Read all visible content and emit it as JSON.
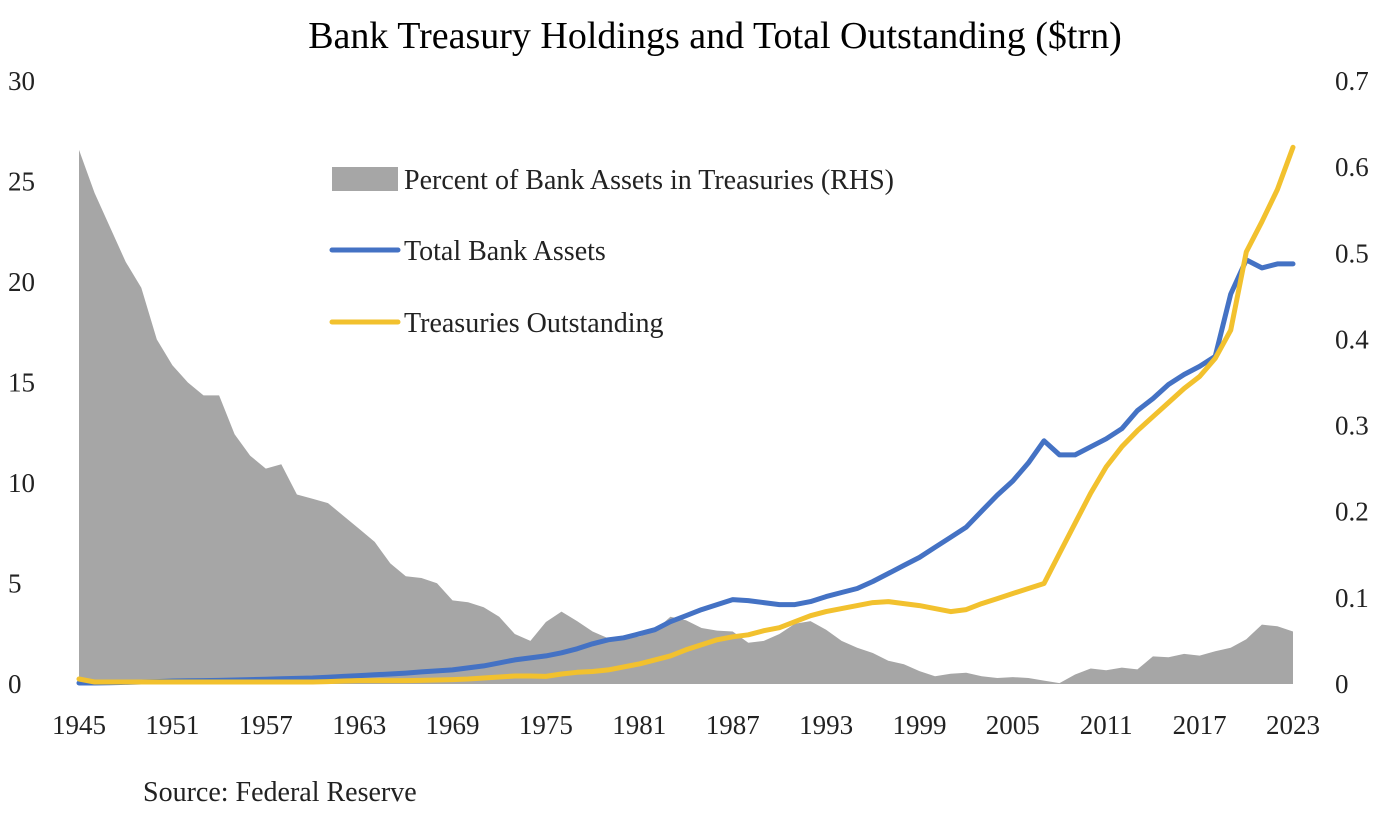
{
  "chart_data": {
    "type": "line",
    "title": "Bank Treasury Holdings and Total Outstanding ($trn)",
    "source": "Source: Federal Reserve",
    "x_tick_labels": [
      "1945",
      "1951",
      "1957",
      "1963",
      "1969",
      "1975",
      "1981",
      "1987",
      "1993",
      "1999",
      "2005",
      "2011",
      "2017",
      "2023"
    ],
    "y_left": {
      "ylim": [
        0,
        30
      ],
      "ticks": [
        "0",
        "5",
        "10",
        "15",
        "20",
        "25",
        "30"
      ]
    },
    "y_right": {
      "ylim": [
        0,
        0.7
      ],
      "ticks": [
        "0",
        "0.1",
        "0.2",
        "0.3",
        "0.4",
        "0.5",
        "0.6",
        "0.7"
      ]
    },
    "legend_placement": "top-center",
    "x": [
      1945,
      1946,
      1947,
      1948,
      1949,
      1950,
      1951,
      1952,
      1953,
      1954,
      1955,
      1956,
      1957,
      1958,
      1959,
      1960,
      1961,
      1962,
      1963,
      1964,
      1965,
      1966,
      1967,
      1968,
      1969,
      1970,
      1971,
      1972,
      1973,
      1974,
      1975,
      1976,
      1977,
      1978,
      1979,
      1980,
      1981,
      1982,
      1983,
      1984,
      1985,
      1986,
      1987,
      1988,
      1989,
      1990,
      1991,
      1992,
      1993,
      1994,
      1995,
      1996,
      1997,
      1998,
      1999,
      2000,
      2001,
      2002,
      2003,
      2004,
      2005,
      2006,
      2007,
      2008,
      2009,
      2010,
      2011,
      2012,
      2013,
      2014,
      2015,
      2016,
      2017,
      2018,
      2019,
      2020,
      2021,
      2022,
      2023
    ],
    "series": [
      {
        "name": "Percent of Bank Assets in Treasuries (RHS)",
        "type": "area",
        "axis": "right",
        "color": "#a6a6a6",
        "values": [
          0.62,
          0.57,
          0.53,
          0.49,
          0.46,
          0.4,
          0.37,
          0.35,
          0.335,
          0.335,
          0.29,
          0.265,
          0.25,
          0.255,
          0.22,
          0.215,
          0.21,
          0.195,
          0.18,
          0.165,
          0.14,
          0.125,
          0.123,
          0.117,
          0.097,
          0.095,
          0.089,
          0.078,
          0.058,
          0.05,
          0.072,
          0.084,
          0.073,
          0.061,
          0.053,
          0.054,
          0.055,
          0.062,
          0.078,
          0.074,
          0.065,
          0.062,
          0.061,
          0.048,
          0.05,
          0.058,
          0.07,
          0.073,
          0.063,
          0.05,
          0.042,
          0.036,
          0.027,
          0.023,
          0.015,
          0.009,
          0.012,
          0.013,
          0.009,
          0.007,
          0.008,
          0.007,
          0.004,
          0.001,
          0.011,
          0.018,
          0.016,
          0.019,
          0.017,
          0.032,
          0.031,
          0.035,
          0.033,
          0.038,
          0.042,
          0.052,
          0.069,
          0.067,
          0.061
        ]
      },
      {
        "name": "Total Bank Assets",
        "type": "line",
        "axis": "left",
        "color": "#4472c4",
        "values": [
          0.05,
          0.05,
          0.06,
          0.08,
          0.1,
          0.12,
          0.15,
          0.16,
          0.17,
          0.18,
          0.2,
          0.22,
          0.24,
          0.26,
          0.28,
          0.3,
          0.34,
          0.38,
          0.42,
          0.46,
          0.5,
          0.54,
          0.6,
          0.65,
          0.7,
          0.8,
          0.9,
          1.05,
          1.2,
          1.3,
          1.4,
          1.55,
          1.75,
          2.0,
          2.2,
          2.3,
          2.5,
          2.7,
          3.1,
          3.4,
          3.7,
          3.95,
          4.2,
          4.15,
          4.05,
          3.95,
          3.95,
          4.1,
          4.35,
          4.55,
          4.75,
          5.1,
          5.5,
          5.9,
          6.3,
          6.8,
          7.3,
          7.8,
          8.6,
          9.4,
          10.1,
          11.0,
          12.1,
          11.4,
          11.4,
          11.8,
          12.2,
          12.7,
          13.6,
          14.2,
          14.9,
          15.4,
          15.8,
          16.3,
          19.4,
          21.1,
          20.7,
          20.9,
          20.9
        ]
      },
      {
        "name": "Treasuries Outstanding",
        "type": "line",
        "axis": "left",
        "color": "#f2c12e",
        "values": [
          0.25,
          0.1,
          0.1,
          0.1,
          0.1,
          0.1,
          0.1,
          0.1,
          0.1,
          0.1,
          0.1,
          0.1,
          0.1,
          0.1,
          0.1,
          0.1,
          0.12,
          0.15,
          0.17,
          0.17,
          0.17,
          0.17,
          0.18,
          0.2,
          0.22,
          0.25,
          0.3,
          0.35,
          0.4,
          0.4,
          0.38,
          0.5,
          0.58,
          0.62,
          0.7,
          0.85,
          1.0,
          1.2,
          1.4,
          1.7,
          1.95,
          2.2,
          2.35,
          2.45,
          2.65,
          2.8,
          3.1,
          3.4,
          3.6,
          3.75,
          3.9,
          4.05,
          4.1,
          4.0,
          3.9,
          3.75,
          3.6,
          3.7,
          4.0,
          4.25,
          4.5,
          4.75,
          5.0,
          6.5,
          8.0,
          9.5,
          10.8,
          11.8,
          12.6,
          13.3,
          14.0,
          14.7,
          15.3,
          16.2,
          17.6,
          21.5,
          23.0,
          24.6,
          26.7
        ]
      }
    ]
  }
}
